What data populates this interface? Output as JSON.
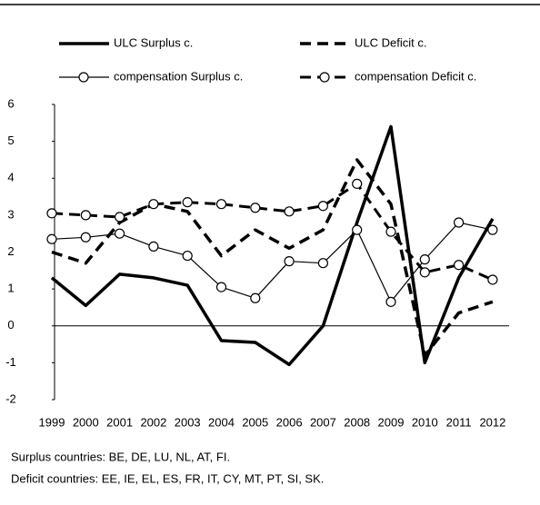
{
  "chart_data": {
    "type": "line",
    "categories": [
      "1999",
      "2000",
      "2001",
      "2002",
      "2003",
      "2004",
      "2005",
      "2006",
      "2007",
      "2008",
      "2009",
      "2010",
      "2011",
      "2012"
    ],
    "series": [
      {
        "name": "ULC Surplus c.",
        "color": "#000000",
        "line_width": 3.5,
        "dash": false,
        "marker": "none",
        "values": [
          1.3,
          0.55,
          1.4,
          1.3,
          1.1,
          -0.4,
          -0.45,
          -1.05,
          0.0,
          2.8,
          5.4,
          -1.0,
          1.3,
          2.9
        ]
      },
      {
        "name": "ULC Deficit c.",
        "color": "#000000",
        "line_width": 3.5,
        "dash": true,
        "marker": "none",
        "values": [
          2.0,
          1.7,
          2.8,
          3.3,
          3.1,
          1.9,
          2.6,
          2.1,
          2.6,
          4.5,
          3.3,
          -0.8,
          0.35,
          0.65
        ]
      },
      {
        "name": "compensation Surplus c.",
        "color": "#000000",
        "line_width": 1.2,
        "dash": false,
        "marker": "circle",
        "values": [
          2.35,
          2.4,
          2.5,
          2.15,
          1.9,
          1.05,
          0.75,
          1.75,
          1.7,
          2.6,
          0.65,
          1.8,
          2.8,
          2.6
        ]
      },
      {
        "name": "compensation Deficit c.",
        "color": "#000000",
        "line_width": 3,
        "dash": true,
        "marker": "circle",
        "values": [
          3.05,
          3.0,
          2.95,
          3.3,
          3.35,
          3.3,
          3.2,
          3.1,
          3.25,
          3.85,
          2.55,
          1.45,
          1.65,
          1.25
        ]
      }
    ],
    "ylim": [
      -2,
      6
    ],
    "yticks": [
      -2,
      -1,
      0,
      1,
      2,
      3,
      4,
      5,
      6
    ],
    "grid": false,
    "legend": "top",
    "notes": [
      "Surplus countries: BE, DE,  LU, NL, AT, FI.",
      "Deficit countries: EE, IE, EL, ES, FR, IT, CY, MT, PT, SI, SK."
    ]
  }
}
